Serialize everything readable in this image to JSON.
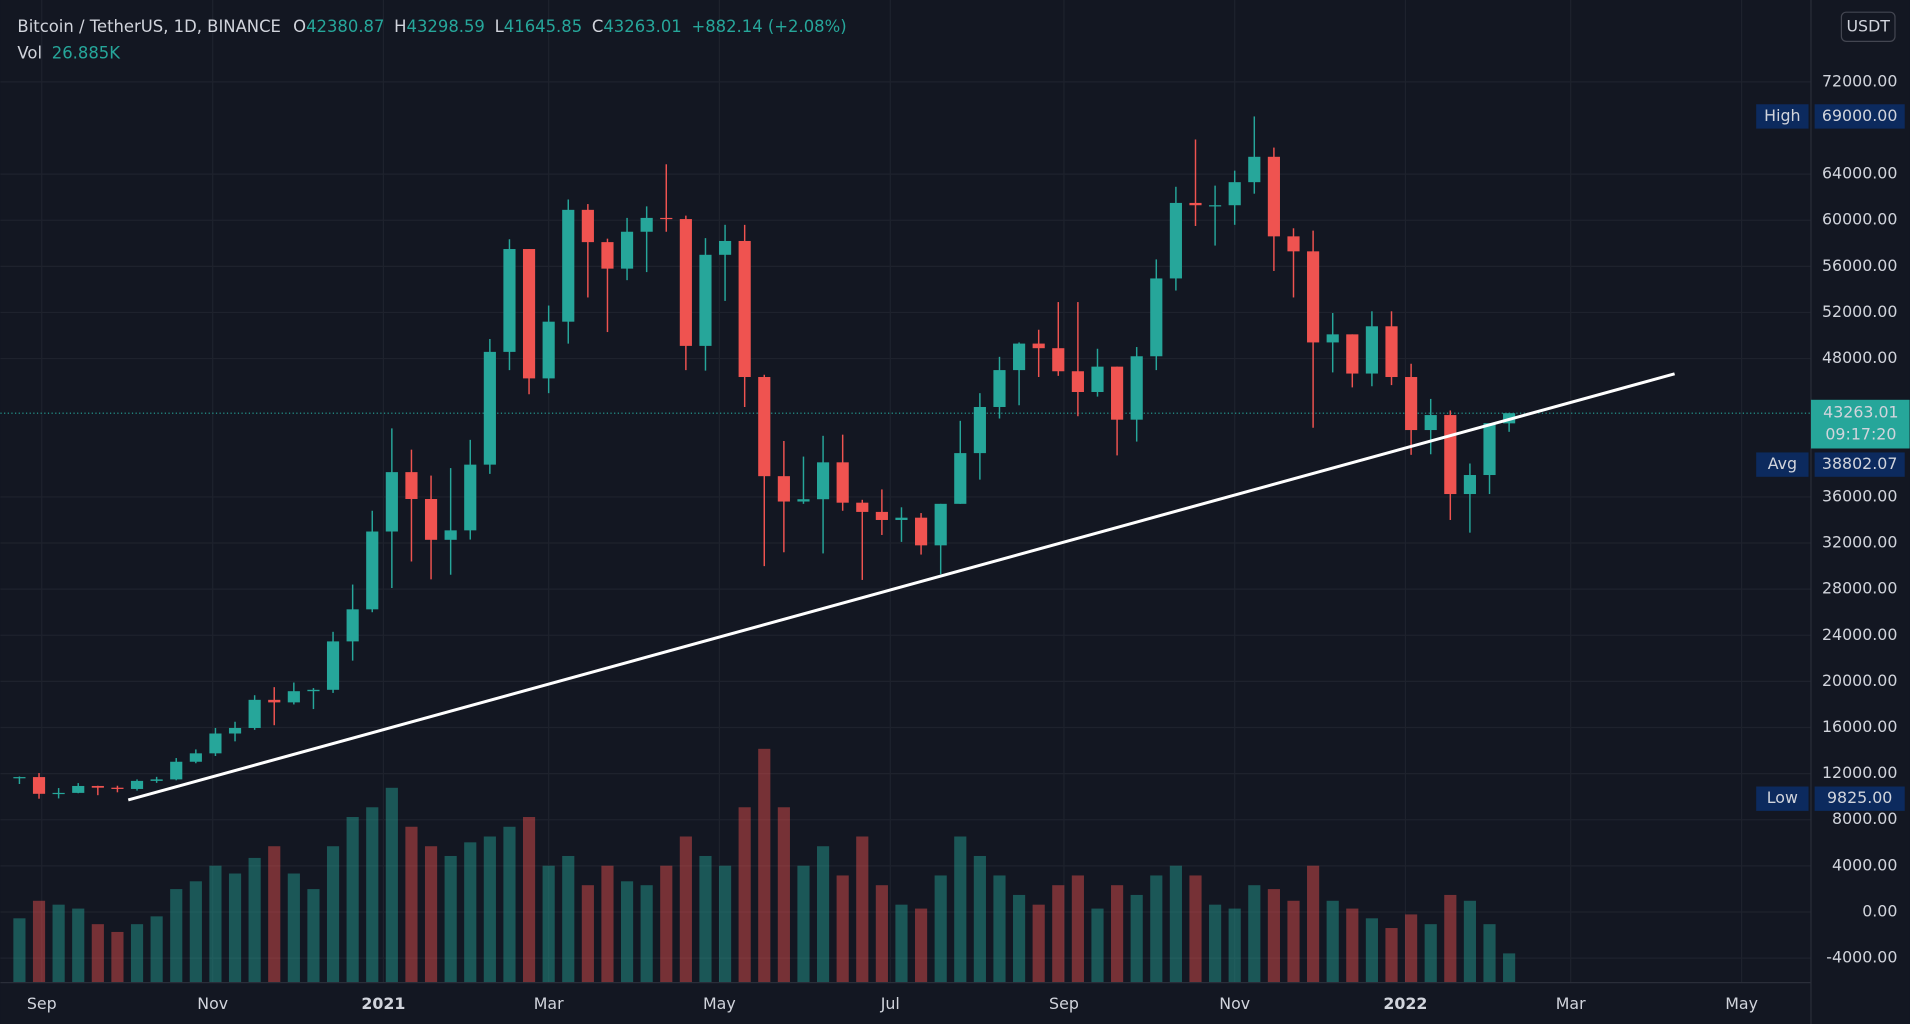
{
  "chart_data": {
    "type": "candlestick",
    "title": "Bitcoin / TetherUS, 1D, BINANCE",
    "ohlc": [
      {
        "label": "O",
        "value": "42380.87"
      },
      {
        "label": "H",
        "value": "43298.59"
      },
      {
        "label": "L",
        "value": "41645.85"
      },
      {
        "label": "C",
        "value": "43263.01"
      }
    ],
    "change": "+882.14 (+2.08%)",
    "volume_label": "Vol",
    "volume_value": "26.885K",
    "currency": "USDT",
    "up_color": "#26a69a",
    "down_color": "#ef5350",
    "open": [
      11650,
      11700,
      10250,
      10330,
      10930,
      10780,
      10670,
      11370,
      11500,
      13030,
      13760,
      15480,
      15960,
      18400,
      18180,
      19150,
      19270,
      23470,
      26250,
      33000,
      38150,
      35820,
      32280,
      33100,
      38800,
      48580,
      57500,
      46280,
      51200,
      60900,
      58100,
      55800,
      59000,
      60200,
      60100,
      49100,
      57000,
      58200,
      46400,
      37800,
      35600,
      35800,
      39000,
      35500,
      34700,
      34000,
      34200,
      31800,
      35400,
      39800,
      43800,
      47000,
      49300,
      48900,
      46900,
      45100,
      47300,
      42700,
      48200,
      54950,
      61500,
      61300,
      61300,
      63300,
      65500,
      58600,
      57300,
      49400,
      50100,
      46700,
      50800,
      46400,
      41800,
      43100,
      36250,
      37900,
      42380.87
    ],
    "high": [
      11750,
      12050,
      10750,
      11180,
      10950,
      10950,
      11500,
      11720,
      13350,
      14100,
      15960,
      16500,
      18800,
      19500,
      19900,
      19420,
      24300,
      28400,
      34800,
      41950,
      40100,
      37850,
      38500,
      40950,
      49700,
      58350,
      57500,
      52600,
      61800,
      61400,
      58400,
      60200,
      61200,
      64850,
      60400,
      58450,
      59600,
      59600,
      46600,
      40850,
      39500,
      41300,
      41400,
      35750,
      36650,
      35100,
      34600,
      35400,
      42600,
      45000,
      48150,
      49400,
      50500,
      52900,
      52900,
      48850,
      47300,
      49000,
      56600,
      62900,
      67000,
      63000,
      64300,
      69000,
      66300,
      59300,
      59100,
      51950,
      50100,
      52100,
      52100,
      47550,
      44500,
      43500,
      38900,
      42000,
      43298.59
    ],
    "low": [
      11100,
      9825,
      9850,
      10300,
      10130,
      10380,
      10530,
      11200,
      11420,
      12900,
      13530,
      14800,
      15800,
      16200,
      18000,
      17600,
      19000,
      21800,
      26000,
      28100,
      30400,
      28850,
      29250,
      32300,
      38000,
      47000,
      44900,
      45000,
      49300,
      53300,
      50300,
      54800,
      55500,
      59000,
      47000,
      46950,
      53000,
      43800,
      30000,
      31200,
      35400,
      31100,
      34800,
      28800,
      32700,
      32100,
      31000,
      29300,
      35400,
      37500,
      42800,
      43950,
      46400,
      46500,
      43000,
      44700,
      39600,
      40800,
      47000,
      53900,
      59500,
      57800,
      59600,
      62300,
      55600,
      53300,
      42000,
      46800,
      45500,
      45600,
      45700,
      39650,
      39700,
      34000,
      32900,
      36250,
      41645.85
    ],
    "close": [
      11700,
      10250,
      10330,
      10930,
      10780,
      10670,
      11370,
      11500,
      13030,
      13760,
      15480,
      15960,
      18400,
      18180,
      19150,
      19270,
      23470,
      26250,
      33000,
      38150,
      35820,
      32280,
      33100,
      38800,
      48580,
      57500,
      46280,
      51200,
      60900,
      58100,
      55800,
      59000,
      60200,
      60100,
      49100,
      57000,
      58200,
      46400,
      37800,
      35600,
      35800,
      39000,
      35500,
      34700,
      34000,
      34200,
      31800,
      35400,
      39800,
      43800,
      47000,
      49300,
      48900,
      46900,
      45100,
      47300,
      42700,
      48200,
      54950,
      61500,
      61300,
      61300,
      63300,
      65500,
      58600,
      57300,
      49400,
      50100,
      46700,
      50800,
      46400,
      41800,
      43100,
      36250,
      37900,
      42400,
      43263.01
    ],
    "volume": [
      330,
      420,
      400,
      380,
      300,
      260,
      300,
      340,
      480,
      520,
      600,
      560,
      640,
      700,
      560,
      480,
      700,
      850,
      900,
      1000,
      800,
      700,
      650,
      720,
      750,
      800,
      850,
      600,
      650,
      500,
      600,
      520,
      500,
      600,
      750,
      650,
      600,
      900,
      1200,
      900,
      600,
      700,
      550,
      750,
      500,
      400,
      380,
      550,
      750,
      650,
      550,
      450,
      400,
      500,
      550,
      380,
      500,
      450,
      550,
      600,
      550,
      400,
      380,
      500,
      480,
      420,
      600,
      420,
      380,
      330,
      280,
      350,
      300,
      450,
      420,
      300,
      150
    ],
    "vlim": [
      0,
      1250
    ],
    "xlim": [
      -0.66,
      91.4
    ],
    "xticks": [
      {
        "value": 1.14,
        "label": "Sep"
      },
      {
        "value": 9.86,
        "label": "Nov"
      },
      {
        "value": 18.57,
        "label": "2021"
      },
      {
        "value": 27,
        "label": "Mar"
      },
      {
        "value": 35.71,
        "label": "May"
      },
      {
        "value": 44.43,
        "label": "Jul"
      },
      {
        "value": 53.29,
        "label": "Sep"
      },
      {
        "value": 62,
        "label": "Nov"
      },
      {
        "value": 70.71,
        "label": "2022"
      },
      {
        "value": 79.14,
        "label": "Mar"
      },
      {
        "value": 87.86,
        "label": "May"
      }
    ],
    "ylim": [
      -6125,
      79100
    ],
    "yticks": [
      {
        "value": -4000,
        "label": "-4000.00"
      },
      {
        "value": 0,
        "label": "0.00"
      },
      {
        "value": 4000,
        "label": "4000.00"
      },
      {
        "value": 8000,
        "label": "8000.00"
      },
      {
        "value": 12000,
        "label": "12000.00"
      },
      {
        "value": 16000,
        "label": "16000.00"
      },
      {
        "value": 20000,
        "label": "20000.00"
      },
      {
        "value": 24000,
        "label": "24000.00"
      },
      {
        "value": 28000,
        "label": "28000.00"
      },
      {
        "value": 32000,
        "label": "32000.00"
      },
      {
        "value": 36000,
        "label": "36000.00"
      },
      {
        "value": 48000,
        "label": "48000.00"
      },
      {
        "value": 52000,
        "label": "52000.00"
      },
      {
        "value": 56000,
        "label": "56000.00"
      },
      {
        "value": 60000,
        "label": "60000.00"
      },
      {
        "value": 64000,
        "label": "64000.00"
      },
      {
        "value": 72000,
        "label": "72000.00"
      }
    ],
    "markers": [
      {
        "label": "High",
        "value": 69000,
        "text": "69000.00"
      },
      {
        "label": "Avg",
        "value": 38802.07,
        "text": "38802.07"
      },
      {
        "label": "Low",
        "value": 9825,
        "text": "9825.00"
      }
    ],
    "current": {
      "value": 43263.01,
      "text": "43263.01",
      "countdown": "09:17:20"
    },
    "grid": true
  }
}
